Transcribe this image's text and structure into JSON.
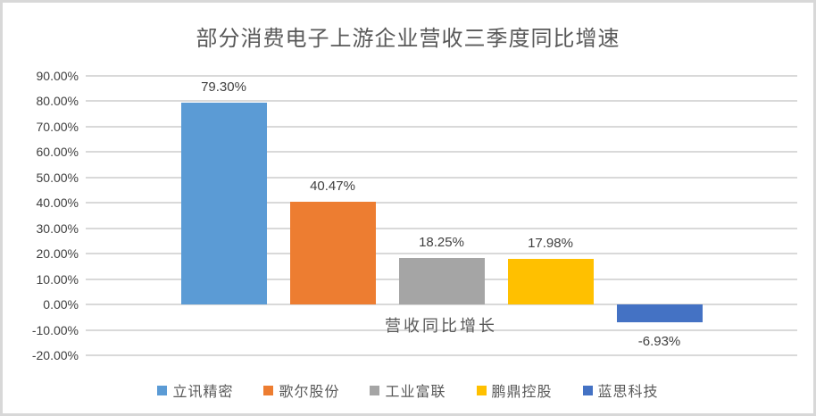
{
  "chart_data": {
    "type": "bar",
    "title": "部分消费电子上游企业营收三季度同比增速",
    "category_label": "营收同比增长",
    "categories": [
      "营收同比增长"
    ],
    "series": [
      {
        "name": "立讯精密",
        "value": 79.3,
        "label": "79.30%",
        "color": "#5B9BD5"
      },
      {
        "name": "歌尔股份",
        "value": 40.47,
        "label": "40.47%",
        "color": "#ED7D31"
      },
      {
        "name": "工业富联",
        "value": 18.25,
        "label": "18.25%",
        "color": "#A5A5A5"
      },
      {
        "name": "鹏鼎控股",
        "value": 17.98,
        "label": "17.98%",
        "color": "#FFC000"
      },
      {
        "name": "蓝思科技",
        "value": -6.93,
        "label": "-6.93%",
        "color": "#4472C4"
      }
    ],
    "y_axis": {
      "min": -20,
      "max": 90,
      "step": 10,
      "tick_labels": [
        "90.00%",
        "80.00%",
        "70.00%",
        "60.00%",
        "50.00%",
        "40.00%",
        "30.00%",
        "20.00%",
        "10.00%",
        "0.00%",
        "-10.00%",
        "-20.00%"
      ]
    },
    "grid": true,
    "legend_position": "bottom",
    "colors": {
      "gridline": "#d9d9d9",
      "axis_text": "#404040",
      "title_text": "#595959",
      "border": "#d8d8d8"
    }
  }
}
